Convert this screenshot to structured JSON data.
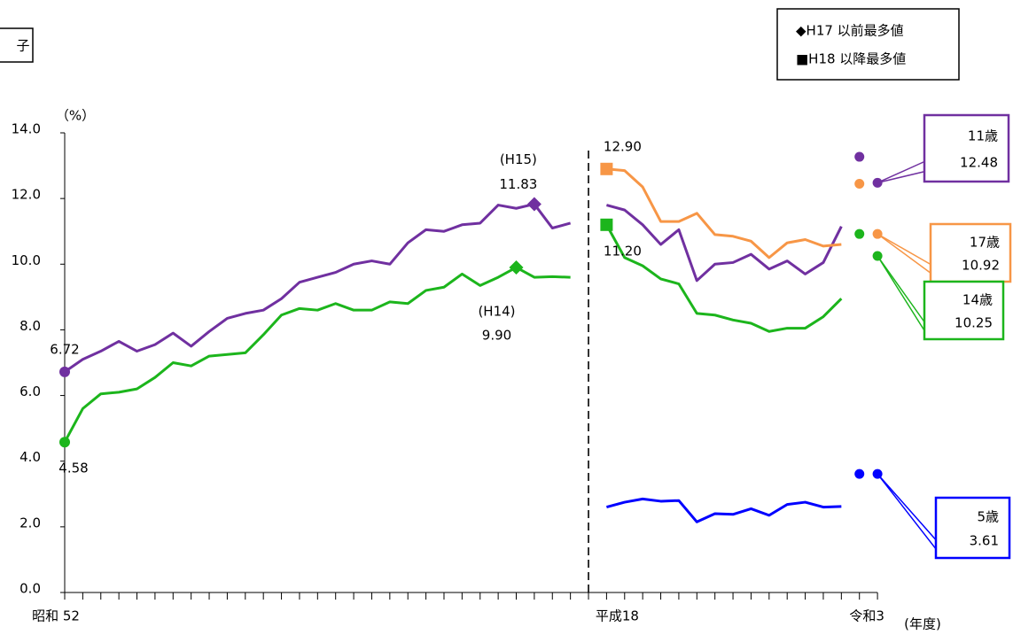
{
  "chart_data": {
    "type": "line",
    "title": "子",
    "y_axis_label": "（%）",
    "x_axis_label": "(年度)",
    "legend_notes": [
      "◆H17 以前最多値",
      "■H18 以降最多値"
    ],
    "divider": "dashed",
    "categories": [
      "昭和 52",
      null,
      null,
      null,
      null,
      null,
      null,
      null,
      null,
      null,
      null,
      null,
      null,
      null,
      null,
      null,
      null,
      null,
      null,
      null,
      null,
      null,
      null,
      null,
      null,
      null,
      null,
      null,
      null,
      null,
      "平成18",
      null,
      null,
      null,
      null,
      null,
      null,
      null,
      null,
      null,
      null,
      null,
      null,
      null,
      null,
      "令和3"
    ],
    "ylim": [
      0,
      14
    ],
    "yticks": [
      {
        "value": 0,
        "label": "0.0"
      },
      {
        "value": 2,
        "label": "2.0"
      },
      {
        "value": 4,
        "label": "4.0"
      },
      {
        "value": 6,
        "label": "6.0"
      },
      {
        "value": 8,
        "label": "8.0"
      },
      {
        "value": 10,
        "label": "10.0"
      },
      {
        "value": 12,
        "label": "12.0"
      },
      {
        "value": 14,
        "label": "14.0"
      }
    ],
    "series": [
      {
        "name": "11歳",
        "color": "#7030a0",
        "end_label": "12.48",
        "values": [
          6.72,
          7.1,
          7.35,
          7.65,
          7.35,
          7.55,
          7.9,
          7.5,
          7.95,
          8.35,
          8.5,
          8.6,
          8.95,
          9.45,
          9.6,
          9.75,
          10.0,
          10.1,
          10.0,
          10.65,
          11.05,
          11.0,
          11.2,
          11.25,
          11.8,
          11.7,
          11.83,
          11.1,
          11.25,
          null,
          11.8,
          11.65,
          11.2,
          10.6,
          11.05,
          9.5,
          10.0,
          10.05,
          10.3,
          9.85,
          10.1,
          9.7,
          10.05,
          11.15,
          null,
          null
        ],
        "dots": [
          null,
          null,
          null,
          null,
          null,
          null,
          null,
          null,
          null,
          null,
          null,
          null,
          null,
          null,
          null,
          null,
          null,
          null,
          null,
          null,
          null,
          null,
          null,
          null,
          null,
          null,
          null,
          null,
          null,
          null,
          null,
          null,
          null,
          null,
          null,
          null,
          null,
          null,
          null,
          null,
          null,
          null,
          null,
          null,
          13.27,
          12.48
        ],
        "annotations": [
          {
            "index": 0,
            "shape": "circle",
            "position": "above",
            "label": "6.72"
          },
          {
            "index": 26,
            "shape": "diamond",
            "position": "above",
            "note": "(H15)",
            "label": "11.83"
          }
        ]
      },
      {
        "name": "17歳",
        "color": "#f79646",
        "end_label": "10.92",
        "values": [
          null,
          null,
          null,
          null,
          null,
          null,
          null,
          null,
          null,
          null,
          null,
          null,
          null,
          null,
          null,
          null,
          null,
          null,
          null,
          null,
          null,
          null,
          null,
          null,
          null,
          null,
          null,
          null,
          null,
          null,
          12.9,
          12.85,
          12.35,
          11.3,
          11.3,
          11.55,
          10.9,
          10.85,
          10.7,
          10.2,
          10.65,
          10.75,
          10.55,
          10.6,
          null,
          null
        ],
        "dots": [
          null,
          null,
          null,
          null,
          null,
          null,
          null,
          null,
          null,
          null,
          null,
          null,
          null,
          null,
          null,
          null,
          null,
          null,
          null,
          null,
          null,
          null,
          null,
          null,
          null,
          null,
          null,
          null,
          null,
          null,
          null,
          null,
          null,
          null,
          null,
          null,
          null,
          null,
          null,
          null,
          null,
          null,
          null,
          null,
          12.45,
          10.92
        ],
        "annotations": [
          {
            "index": 30,
            "shape": "square",
            "position": "above",
            "label": "12.90"
          }
        ]
      },
      {
        "name": "14歳",
        "color": "#1cb51c",
        "end_label": "10.25",
        "values": [
          4.58,
          5.6,
          6.05,
          6.1,
          6.2,
          6.55,
          7.0,
          6.9,
          7.2,
          7.25,
          7.3,
          7.85,
          8.45,
          8.65,
          8.6,
          8.8,
          8.6,
          8.6,
          8.85,
          8.8,
          9.2,
          9.3,
          9.7,
          9.35,
          9.6,
          9.9,
          9.6,
          9.62,
          9.6,
          null,
          11.2,
          10.2,
          9.95,
          9.55,
          9.4,
          8.5,
          8.45,
          8.3,
          8.2,
          7.95,
          8.05,
          8.05,
          8.4,
          8.95,
          null,
          null
        ],
        "dots": [
          null,
          null,
          null,
          null,
          null,
          null,
          null,
          null,
          null,
          null,
          null,
          null,
          null,
          null,
          null,
          null,
          null,
          null,
          null,
          null,
          null,
          null,
          null,
          null,
          null,
          null,
          null,
          null,
          null,
          null,
          null,
          null,
          null,
          null,
          null,
          null,
          null,
          null,
          null,
          null,
          null,
          null,
          null,
          null,
          10.92,
          10.25
        ],
        "annotations": [
          {
            "index": 0,
            "shape": "circle",
            "position": "below",
            "label": "4.58"
          },
          {
            "index": 25,
            "shape": "diamond",
            "position": "below",
            "note": "(H14)",
            "label": "9.90"
          },
          {
            "index": 30,
            "shape": "square",
            "position": "below",
            "label": "11.20"
          }
        ]
      },
      {
        "name": "5歳",
        "color": "#0000ff",
        "end_label": "3.61",
        "values": [
          null,
          null,
          null,
          null,
          null,
          null,
          null,
          null,
          null,
          null,
          null,
          null,
          null,
          null,
          null,
          null,
          null,
          null,
          null,
          null,
          null,
          null,
          null,
          null,
          null,
          null,
          null,
          null,
          null,
          null,
          2.6,
          2.75,
          2.85,
          2.78,
          2.8,
          2.15,
          2.4,
          2.38,
          2.55,
          2.35,
          2.68,
          2.75,
          2.6,
          2.62,
          null,
          null
        ],
        "dots": [
          null,
          null,
          null,
          null,
          null,
          null,
          null,
          null,
          null,
          null,
          null,
          null,
          null,
          null,
          null,
          null,
          null,
          null,
          null,
          null,
          null,
          null,
          null,
          null,
          null,
          null,
          null,
          null,
          null,
          null,
          null,
          null,
          null,
          null,
          null,
          null,
          null,
          null,
          null,
          null,
          null,
          null,
          null,
          null,
          3.61,
          3.61
        ],
        "annotations": []
      }
    ]
  }
}
